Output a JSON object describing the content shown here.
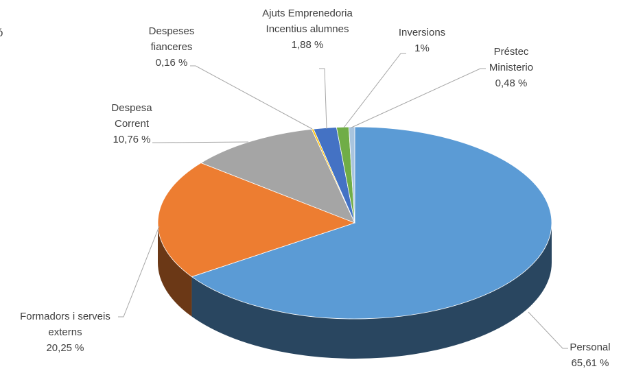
{
  "chart_data": {
    "type": "pie",
    "title": "ió",
    "categories": [
      "Personal",
      "Formadors i serveis externs",
      "Despesa Corrent",
      "Despeses fianceres",
      "Ajuts Emprenedoria Incentius alumnes",
      "Inversions",
      "Préstec Ministerio"
    ],
    "values": [
      65.61,
      20.25,
      10.76,
      0.16,
      1.88,
      1,
      0.48
    ],
    "value_labels": [
      "65,61 %",
      "20,25 %",
      "10,76 %",
      "0,16 %",
      "1,88 %",
      "1%",
      "0,48 %"
    ],
    "colors": [
      "#5b9bd5",
      "#ed7d31",
      "#a5a5a5",
      "#ffc000",
      "#4472c4",
      "#70ad47",
      "#a9c4de"
    ]
  }
}
